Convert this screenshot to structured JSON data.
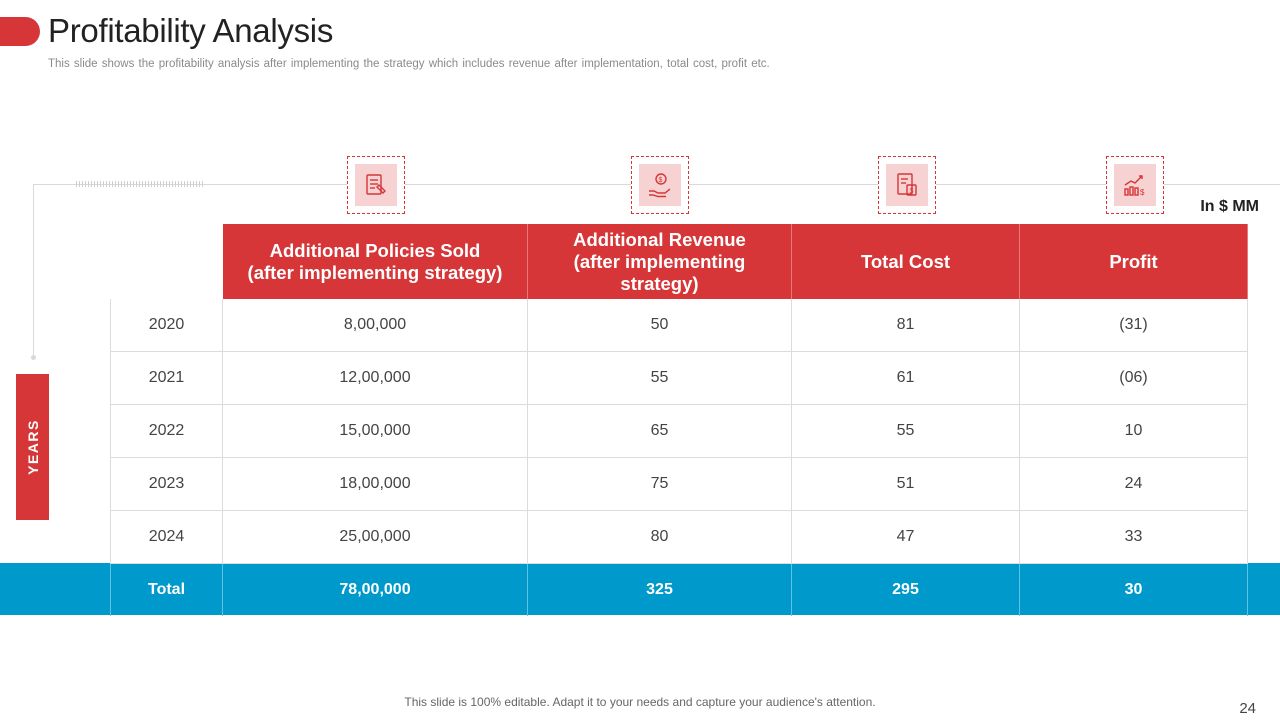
{
  "slide": {
    "title": "Profitability Analysis",
    "subtitle": "This slide shows the profitability analysis after implementing the strategy which includes revenue  after implementation,  total cost, profit etc.",
    "unit_label": "In $ MM",
    "years_label": "YEARS",
    "footer": "This slide is 100% editable. Adapt it to your needs and capture your audience's attention.",
    "page_number": "24"
  },
  "icons": [
    "policy-document-icon",
    "money-hand-icon",
    "invoice-icon",
    "growth-chart-icon"
  ],
  "colors": {
    "accent_red": "#d63638",
    "total_blue": "#0099cc",
    "icon_bg": "#f7d2d2"
  },
  "table": {
    "headers": [
      [
        "Additional Policies Sold",
        "(after implementing strategy)"
      ],
      [
        "Additional Revenue",
        "(after implementing",
        "strategy)"
      ],
      [
        "Total Cost"
      ],
      [
        "Profit"
      ]
    ],
    "rows": [
      [
        "2020",
        "8,00,000",
        "50",
        "81",
        "(31)"
      ],
      [
        "2021",
        "12,00,000",
        "55",
        "61",
        "(06)"
      ],
      [
        "2022",
        "15,00,000",
        "65",
        "55",
        "10"
      ],
      [
        "2023",
        "18,00,000",
        "75",
        "51",
        "24"
      ],
      [
        "2024",
        "25,00,000",
        "80",
        "47",
        "33"
      ]
    ],
    "total": [
      "Total",
      "78,00,000",
      "325",
      "295",
      "30"
    ]
  }
}
